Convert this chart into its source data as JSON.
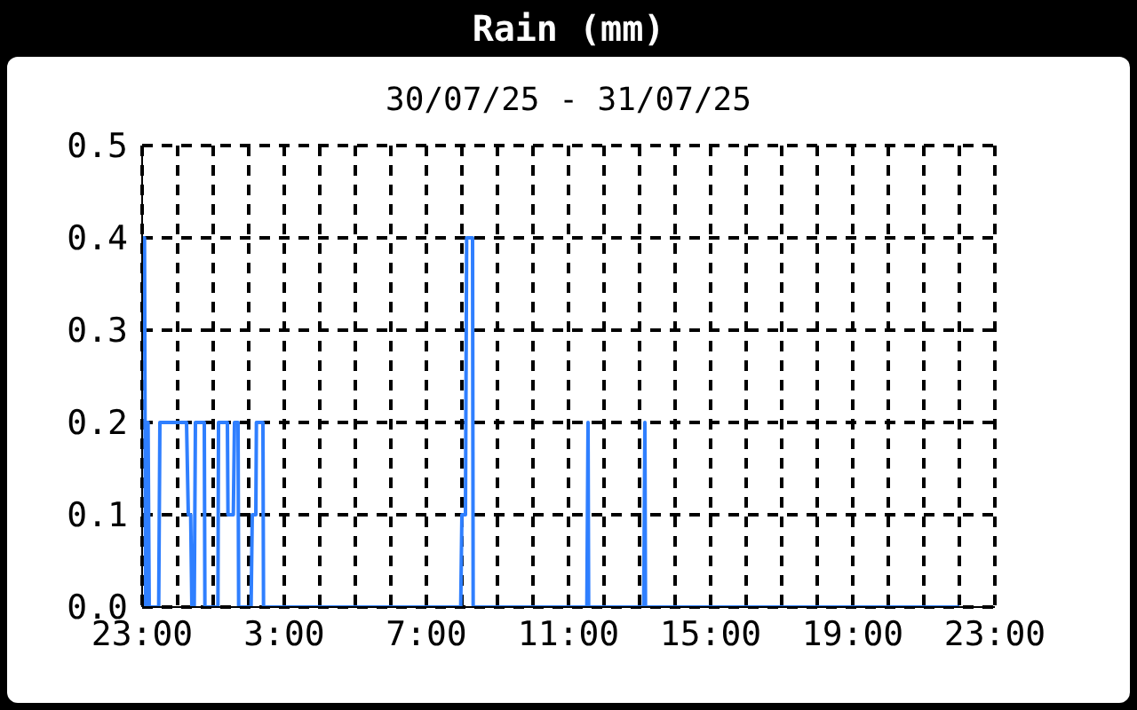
{
  "chart_data": {
    "type": "line",
    "title": "Rain (mm)",
    "subtitle": "30/07/25 - 31/07/25",
    "x": [
      "--07-30T23:00",
      "--07-30T23:04",
      "--07-30T23:06",
      "--07-30T23:08",
      "--07-30T23:10",
      "--07-30T23:12",
      "--07-30T23:28",
      "--07-30T23:30",
      "--07-31T00:15",
      "--07-31T00:18",
      "--07-31T00:22",
      "--07-31T00:24",
      "--07-31T00:28",
      "--07-31T00:30",
      "--07-31T00:45",
      "--07-31T00:46",
      "--07-31T01:08",
      "--07-31T01:09",
      "--07-31T01:24",
      "--07-31T01:25",
      "--07-31T01:34",
      "--07-31T01:36",
      "--07-31T01:42",
      "--07-31T01:43",
      "--07-31T02:04",
      "--07-31T02:06",
      "--07-31T02:12",
      "--07-31T02:13",
      "--07-31T02:24",
      "--07-31T02:25",
      "--07-31T07:58",
      "--07-31T08:00",
      "--07-31T08:06",
      "--07-31T08:08",
      "--07-31T08:18",
      "--07-31T08:19",
      "--07-31T11:31",
      "--07-31T11:33",
      "--07-31T11:34",
      "--07-31T13:07",
      "--07-31T13:09",
      "--07-31T13:10",
      "--07-31T22:00"
    ],
    "series": [
      {
        "color": "#2f7fff",
        "values": [
          0.4,
          0.4,
          0,
          0.2,
          0.2,
          0,
          0,
          0.2,
          0.2,
          0.1,
          0.1,
          0,
          0,
          0.2,
          0.2,
          0,
          0,
          0.2,
          0.2,
          0.1,
          0.1,
          0.2,
          0.2,
          0,
          0,
          0.1,
          0.1,
          0.2,
          0.2,
          0,
          0,
          0.1,
          0.1,
          0.4,
          0.4,
          0,
          0,
          0.2,
          0,
          0,
          0.2,
          0,
          0
        ]
      }
    ],
    "xlim": [
      "--07-30T23:00",
      "--07-31T23:00"
    ],
    "xticks": [
      {
        "value": "--07-30T23:00",
        "label": "23:00"
      },
      {
        "value": "--07-31T00:00",
        "label": null
      },
      {
        "value": "--07-31T01:00",
        "label": null
      },
      {
        "value": "--07-31T02:00",
        "label": null
      },
      {
        "value": "--07-31T03:00",
        "label": "3:00"
      },
      {
        "value": "--07-31T04:00",
        "label": null
      },
      {
        "value": "--07-31T05:00",
        "label": null
      },
      {
        "value": "--07-31T06:00",
        "label": null
      },
      {
        "value": "--07-31T07:00",
        "label": "7:00"
      },
      {
        "value": "--07-31T08:00",
        "label": null
      },
      {
        "value": "--07-31T09:00",
        "label": null
      },
      {
        "value": "--07-31T10:00",
        "label": null
      },
      {
        "value": "--07-31T11:00",
        "label": "11:00"
      },
      {
        "value": "--07-31T12:00",
        "label": null
      },
      {
        "value": "--07-31T13:00",
        "label": null
      },
      {
        "value": "--07-31T14:00",
        "label": null
      },
      {
        "value": "--07-31T15:00",
        "label": "15:00"
      },
      {
        "value": "--07-31T16:00",
        "label": null
      },
      {
        "value": "--07-31T17:00",
        "label": null
      },
      {
        "value": "--07-31T18:00",
        "label": null
      },
      {
        "value": "--07-31T19:00",
        "label": "19:00"
      },
      {
        "value": "--07-31T20:00",
        "label": null
      },
      {
        "value": "--07-31T21:00",
        "label": null
      },
      {
        "value": "--07-31T22:00",
        "label": null
      },
      {
        "value": "--07-31T23:00",
        "label": "23:00"
      }
    ],
    "ylim": [
      0,
      0.5
    ],
    "yticks": [
      {
        "value": 0,
        "label": "0.0"
      },
      {
        "value": 0.1,
        "label": "0.1"
      },
      {
        "value": 0.2,
        "label": "0.2"
      },
      {
        "value": 0.3,
        "label": "0.3"
      },
      {
        "value": 0.4,
        "label": "0.4"
      },
      {
        "value": 0.5,
        "label": "0.5"
      }
    ],
    "grid": true,
    "marker": "none",
    "line_style": "solid"
  }
}
